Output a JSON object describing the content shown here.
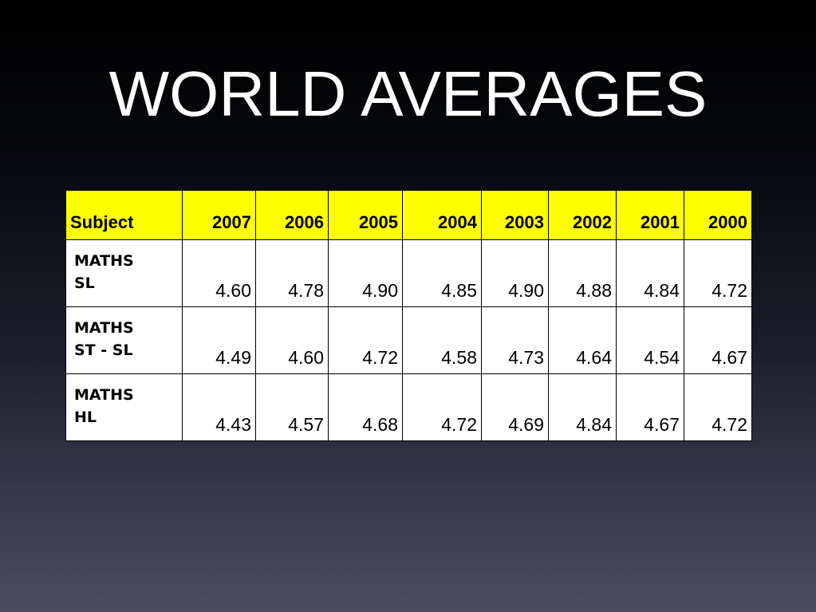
{
  "slide": {
    "title": "WORLD AVERAGES"
  },
  "table": {
    "headers": [
      "Subject",
      "2007",
      "2006",
      "2005",
      "2004",
      "2003",
      "2002",
      "2001",
      "2000"
    ],
    "rows": [
      {
        "subject": "MATHS\nSL",
        "values": [
          "4.60",
          "4.78",
          "4.90",
          "4.85",
          "4.90",
          "4.88",
          "4.84",
          "4.72"
        ]
      },
      {
        "subject": "MATHS\nST - SL",
        "values": [
          "4.49",
          "4.60",
          "4.72",
          "4.58",
          "4.73",
          "4.64",
          "4.54",
          "4.67"
        ]
      },
      {
        "subject": "MATHS\nHL",
        "values": [
          "4.43",
          "4.57",
          "4.68",
          "4.72",
          "4.69",
          "4.84",
          "4.67",
          "4.72"
        ]
      }
    ]
  },
  "colors": {
    "header_background": "#ffff00",
    "cell_background": "#ffffff",
    "title_text": "#ffffff"
  }
}
